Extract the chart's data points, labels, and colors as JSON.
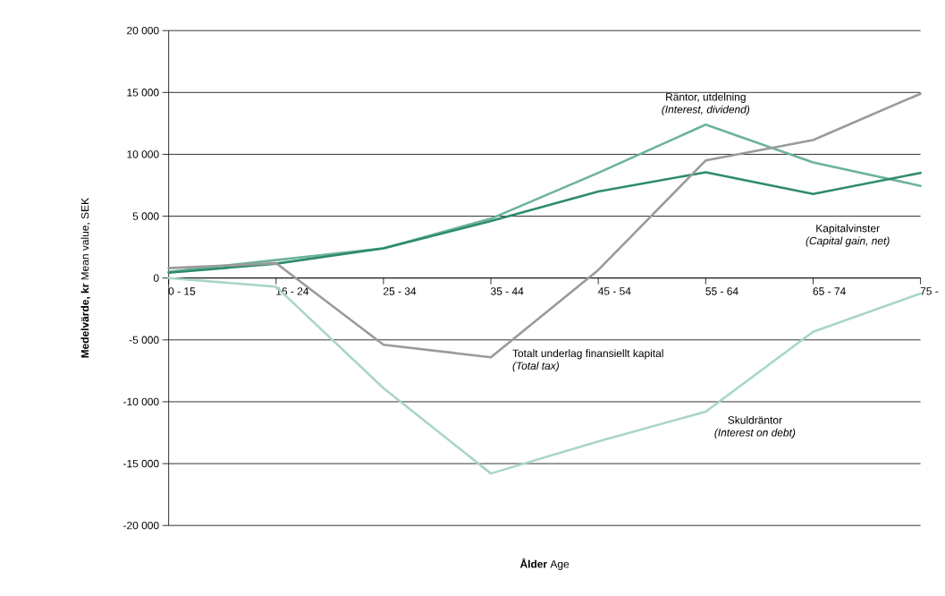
{
  "chart_data": {
    "type": "line",
    "xlabel": "**Ålder**  Age",
    "ylabel": "**Medelvärde, kr**  Mean value, SEK",
    "categories": [
      "0 - 15",
      "16 - 24",
      "25 -  34",
      "35 -  44",
      "45 -  54",
      "55 -  64",
      "65 - 74",
      "75 -"
    ],
    "series": [
      {
        "name": "Räntor, utdelning",
        "color": "#6cb39b",
        "values": [
          500,
          1450,
          2400,
          4800,
          8500,
          12400,
          9350,
          7450
        ]
      },
      {
        "name": "Kapitalvinster",
        "color": "#2e8b6e",
        "values": [
          430,
          1160,
          2400,
          4600,
          7000,
          8550,
          6800,
          8500
        ]
      },
      {
        "name": "Totalt underlag finansiellt kapital",
        "color": "#9a9a9a",
        "values": [
          800,
          1200,
          -5400,
          -6400,
          650,
          9500,
          11150,
          14900
        ]
      },
      {
        "name": "Skuldräntor",
        "color": "#a9d6c6",
        "values": [
          0,
          -700,
          -8900,
          -15800,
          -13200,
          -10800,
          -4350,
          -1250
        ]
      }
    ],
    "annotations": [
      "(Interest, dividend)",
      "(Capital gain, net)",
      "(Total tax)",
      "(Interest on debt)"
    ],
    "ylim": [
      -20000,
      20000
    ],
    "yticks": [
      {
        "value": -20000,
        "label": "-20 000"
      },
      {
        "value": -15000,
        "label": "-15 000"
      },
      {
        "value": -10000,
        "label": "-10 000"
      },
      {
        "value": -5000,
        "label": "-5 000"
      },
      0,
      {
        "value": 5000,
        "label": "5 000"
      },
      {
        "value": 10000,
        "label": "10 000"
      },
      {
        "value": 15000,
        "label": "15 000"
      },
      {
        "value": 20000,
        "label": "20 000"
      }
    ],
    "grid": "y",
    "marker": "none",
    "line_style": "solid"
  }
}
